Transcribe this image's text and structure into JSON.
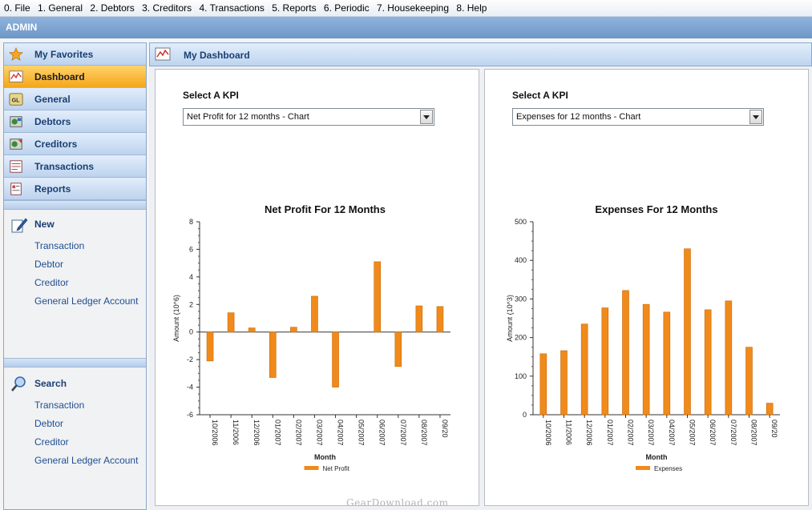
{
  "menu": [
    "0. File",
    "1. General",
    "2. Debtors",
    "3. Creditors",
    "4. Transactions",
    "5. Reports",
    "6. Periodic",
    "7. Housekeeping",
    "8. Help"
  ],
  "user_bar": "ADMIN",
  "sidebar": {
    "nav": [
      {
        "label": "My Favorites",
        "icon": "star-icon"
      },
      {
        "label": "Dashboard",
        "icon": "dashboard-icon",
        "active": true
      },
      {
        "label": "General",
        "icon": "general-ledger-icon"
      },
      {
        "label": "Debtors",
        "icon": "debtors-icon"
      },
      {
        "label": "Creditors",
        "icon": "creditors-icon"
      },
      {
        "label": "Transactions",
        "icon": "transactions-icon"
      },
      {
        "label": "Reports",
        "icon": "reports-icon"
      }
    ],
    "new": {
      "title": "New",
      "icon": "new-pencil-icon",
      "links": [
        "Transaction",
        "Debtor",
        "Creditor",
        "General Ledger Account"
      ]
    },
    "search": {
      "title": "Search",
      "icon": "magnifier-icon",
      "links": [
        "Transaction",
        "Debtor",
        "Creditor",
        "General Ledger Account"
      ]
    }
  },
  "content": {
    "title": "My Dashboard",
    "left": {
      "kpi_label": "Select A KPI",
      "kpi_selected": "Net Profit for 12 months - Chart"
    },
    "right": {
      "kpi_label": "Select A KPI",
      "kpi_selected": "Expenses for 12 months - Chart"
    }
  },
  "chart_data": [
    {
      "type": "bar",
      "title": "Net Profit For 12 Months",
      "xlabel": "Month",
      "ylabel": "Amount (10^6)",
      "ylim": [
        -6,
        8
      ],
      "yticks": [
        8,
        6,
        4,
        2,
        0,
        -2,
        -4,
        -6
      ],
      "categories": [
        "10/2006",
        "11/2006",
        "12/2006",
        "01/2007",
        "02/2007",
        "03/2007",
        "04/2007",
        "05/2007",
        "06/2007",
        "07/2007",
        "08/2007",
        "09/20"
      ],
      "series": [
        {
          "name": "Net Profit",
          "values": [
            -2.1,
            1.4,
            0.3,
            -3.3,
            0.35,
            2.6,
            -4.0,
            0,
            5.1,
            -2.5,
            1.9,
            1.85
          ]
        }
      ],
      "legend": "bottom-center",
      "color": "#f08a1a"
    },
    {
      "type": "bar",
      "title": "Expenses For 12 Months",
      "xlabel": "Month",
      "ylabel": "Amount (10^3)",
      "ylim": [
        0,
        500
      ],
      "yticks": [
        500,
        400,
        300,
        200,
        100,
        0
      ],
      "categories": [
        "10/2006",
        "11/2006",
        "12/2006",
        "01/2007",
        "02/2007",
        "03/2007",
        "04/2007",
        "05/2007",
        "06/2007",
        "07/2007",
        "08/2007",
        "09/20"
      ],
      "series": [
        {
          "name": "Expenses",
          "values": [
            158,
            166,
            235,
            277,
            322,
            286,
            266,
            430,
            272,
            295,
            175,
            30
          ]
        }
      ],
      "legend": "bottom-center",
      "color": "#f08a1a"
    }
  ],
  "watermark": "GearDownload.com"
}
